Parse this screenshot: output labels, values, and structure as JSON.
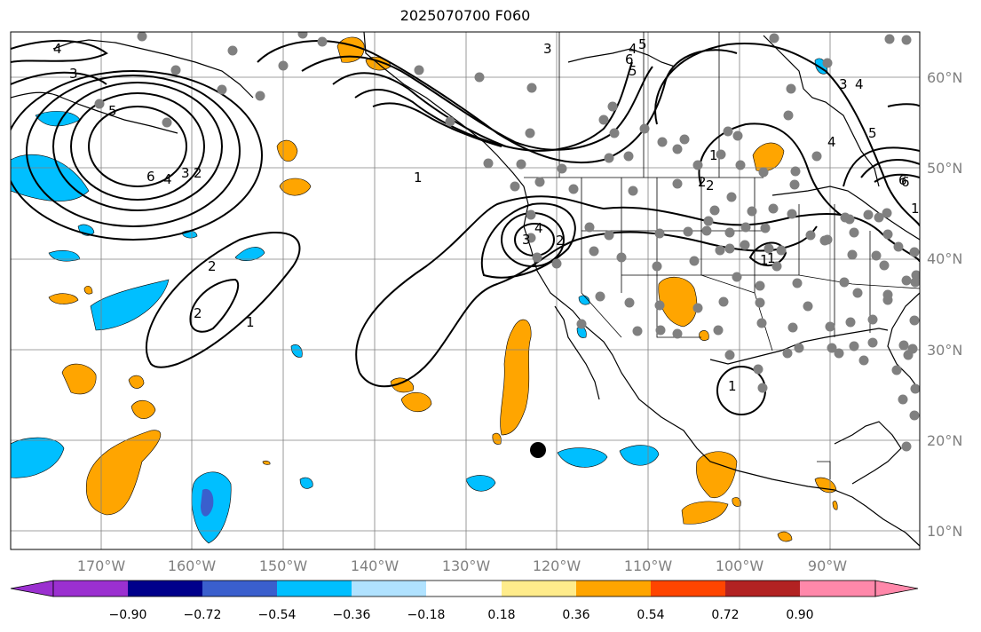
{
  "title": "2025070700 F060",
  "lon_labels": [
    "170°W",
    "160°W",
    "150°W",
    "140°W",
    "130°W",
    "120°W",
    "110°W",
    "100°W",
    "90°W"
  ],
  "lat_labels": [
    "60°N",
    "50°N",
    "40°N",
    "30°N",
    "20°N",
    "10°N"
  ],
  "colorbar": {
    "tick_labels": [
      "−0.90",
      "−0.72",
      "−0.54",
      "−0.36",
      "−0.18",
      "0.18",
      "0.36",
      "0.54",
      "0.72",
      "0.90"
    ],
    "colors": [
      "#9b30d0",
      "#00008b",
      "#3a5fcd",
      "#00bfff",
      "#b0e2ff",
      "#ffffff",
      "#ffec8b",
      "#ffa500",
      "#ff4500",
      "#b22222",
      "#ff88aa"
    ]
  },
  "contour_labels": [
    "4",
    "3",
    "5",
    "6",
    "4",
    "3",
    "2",
    "1",
    "1",
    "2",
    "2",
    "1",
    "4",
    "3",
    "2",
    "1",
    "2",
    "3",
    "4",
    "5",
    "6",
    "1",
    "2",
    "3",
    "4",
    "5",
    "6",
    "5",
    "4",
    "6",
    "1",
    "1"
  ],
  "marker_label": ""
}
